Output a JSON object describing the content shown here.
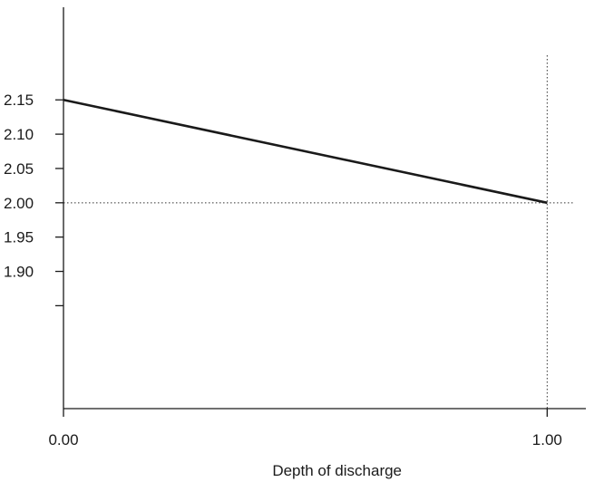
{
  "chart_data": {
    "type": "line",
    "title": "",
    "xlabel": "Depth of discharge",
    "ylabel": "",
    "xlim": [
      0,
      1.08
    ],
    "ylim": [
      1.7,
      2.285
    ],
    "x_ticks": [
      {
        "value": 0,
        "label": "0.00"
      },
      {
        "value": 1,
        "label": "1.00"
      }
    ],
    "y_ticks": [
      {
        "value": 2.15,
        "label": "2.15"
      },
      {
        "value": 2.1,
        "label": "2.10"
      },
      {
        "value": 2.05,
        "label": "2.05"
      },
      {
        "value": 2.0,
        "label": "2.00"
      },
      {
        "value": 1.95,
        "label": "1.95"
      },
      {
        "value": 1.9,
        "label": "1.90"
      },
      {
        "value": 1.85,
        "label": ""
      }
    ],
    "series": [
      {
        "x": [
          0,
          1
        ],
        "y": [
          2.15,
          2.0
        ],
        "color": "#1a1a1a"
      }
    ],
    "reference_lines": [
      {
        "orientation": "horizontal",
        "value": 2.0,
        "style": "dotted"
      },
      {
        "orientation": "vertical",
        "value": 1.0,
        "style": "dotted"
      }
    ],
    "grid": false,
    "legend": "none"
  }
}
